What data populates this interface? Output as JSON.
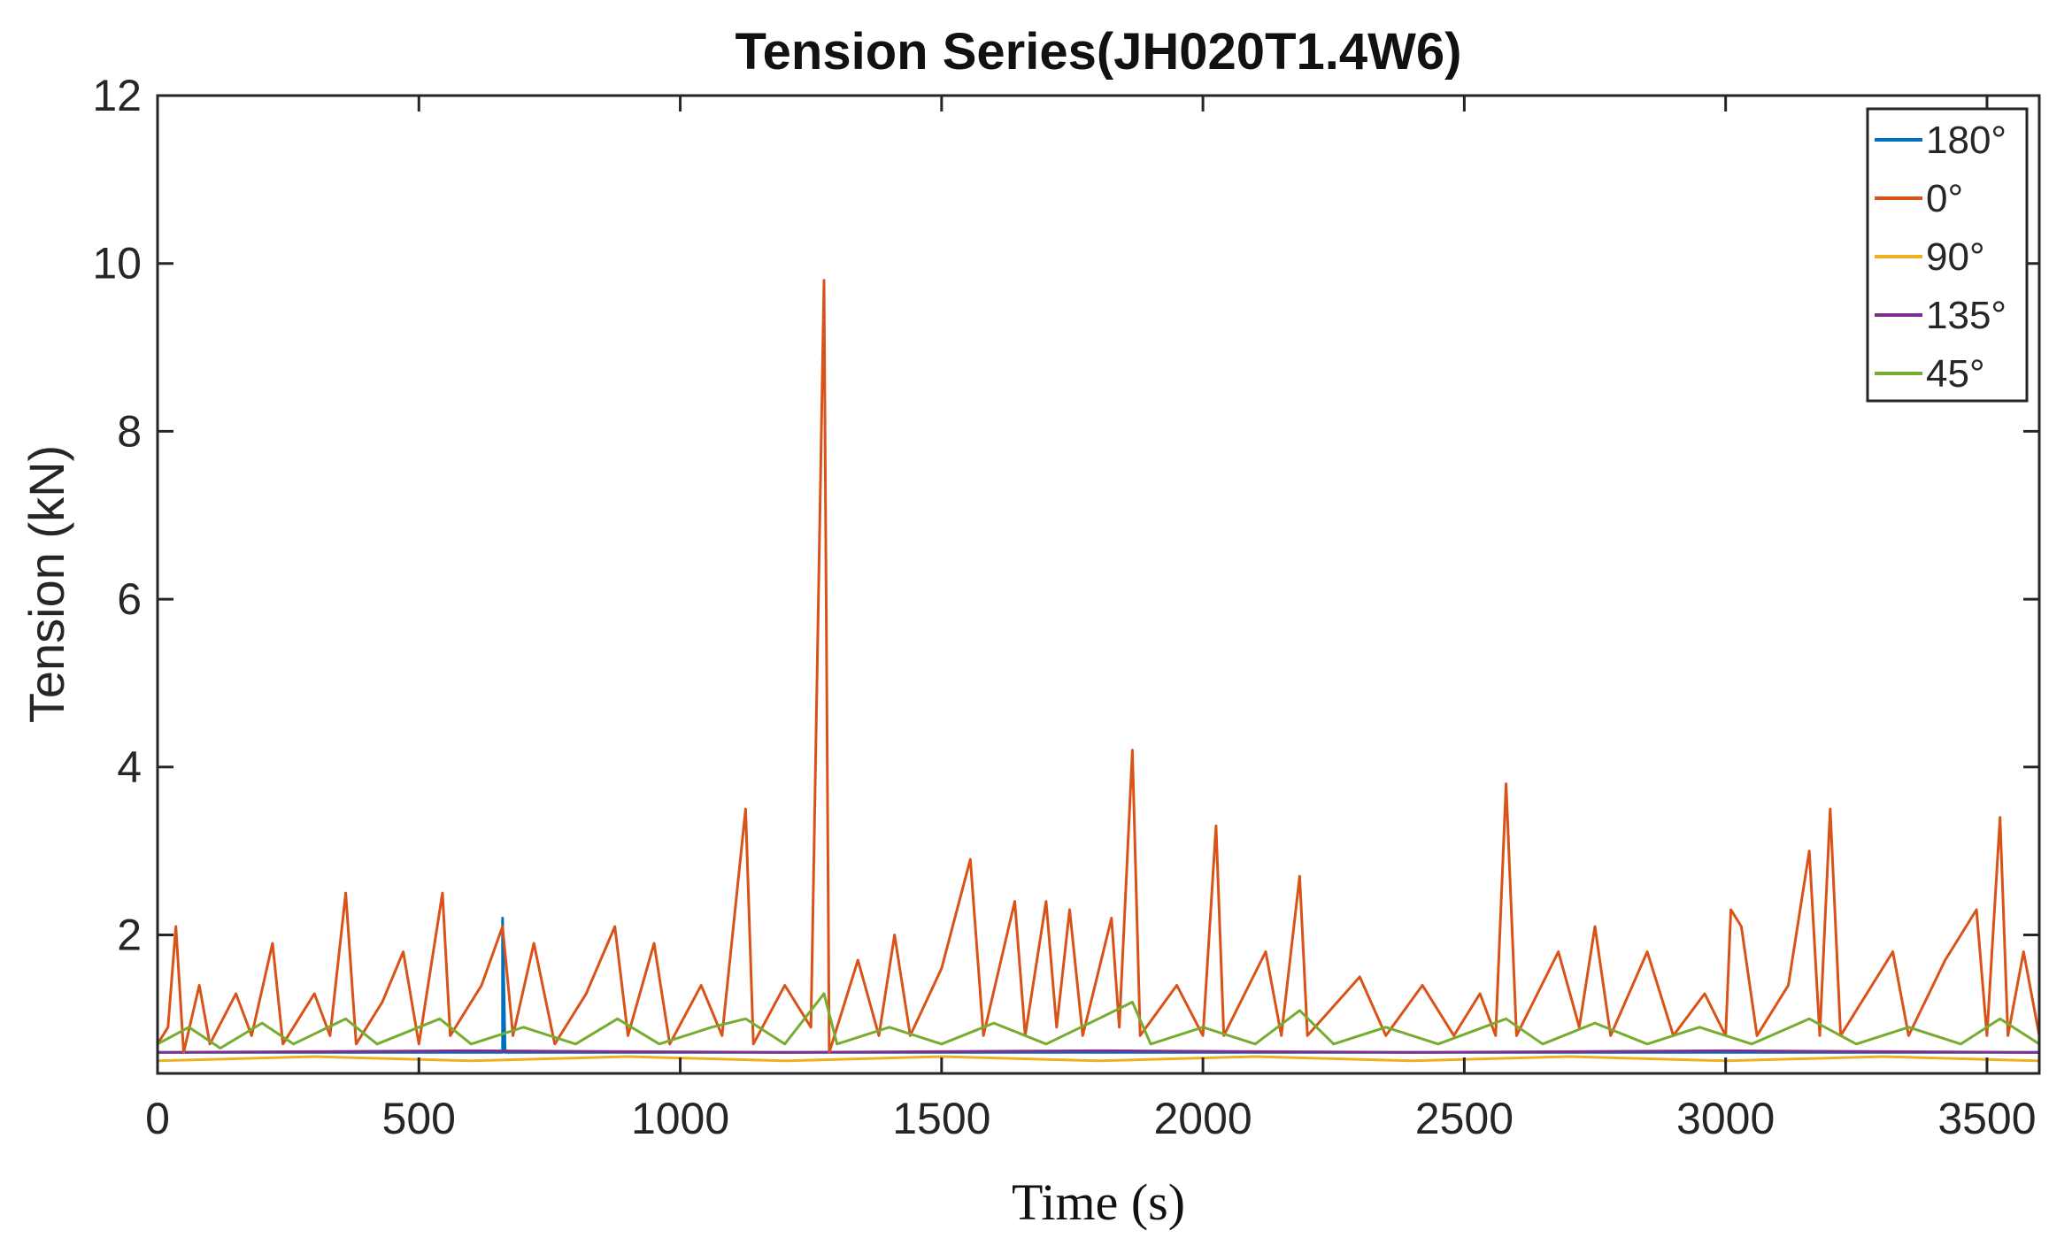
{
  "chart_data": {
    "type": "line",
    "title": "Tension Series(JH020T1.4W6)",
    "xlabel": "Time (s)",
    "ylabel": "Tension (kN)",
    "xlim": [
      0,
      3600
    ],
    "ylim": [
      0,
      12
    ],
    "xticks": [
      0,
      500,
      1000,
      1500,
      2000,
      2500,
      3000,
      3500
    ],
    "yticks": [
      2,
      4,
      6,
      8,
      10,
      12
    ],
    "grid": false,
    "legend_position": "top-right",
    "series": [
      {
        "name": "180°",
        "color": "#0072BD",
        "points": [
          [
            0,
            0.6
          ],
          [
            660,
            0.6
          ],
          [
            660,
            2.2
          ],
          [
            665,
            0.6
          ],
          [
            3600,
            0.6
          ]
        ]
      },
      {
        "name": "0°",
        "color": "#D95319",
        "points": [
          [
            0,
            0.7
          ],
          [
            20,
            0.9
          ],
          [
            35,
            2.1
          ],
          [
            50,
            0.6
          ],
          [
            80,
            1.4
          ],
          [
            100,
            0.7
          ],
          [
            150,
            1.3
          ],
          [
            180,
            0.8
          ],
          [
            220,
            1.9
          ],
          [
            240,
            0.7
          ],
          [
            300,
            1.3
          ],
          [
            330,
            0.8
          ],
          [
            360,
            2.5
          ],
          [
            380,
            0.7
          ],
          [
            430,
            1.2
          ],
          [
            470,
            1.8
          ],
          [
            500,
            0.7
          ],
          [
            545,
            2.5
          ],
          [
            560,
            0.8
          ],
          [
            620,
            1.4
          ],
          [
            660,
            2.1
          ],
          [
            680,
            0.8
          ],
          [
            720,
            1.9
          ],
          [
            760,
            0.7
          ],
          [
            820,
            1.3
          ],
          [
            875,
            2.1
          ],
          [
            900,
            0.8
          ],
          [
            950,
            1.9
          ],
          [
            980,
            0.7
          ],
          [
            1040,
            1.4
          ],
          [
            1080,
            0.8
          ],
          [
            1125,
            3.5
          ],
          [
            1140,
            0.7
          ],
          [
            1200,
            1.4
          ],
          [
            1250,
            0.9
          ],
          [
            1275,
            9.8
          ],
          [
            1285,
            0.6
          ],
          [
            1340,
            1.7
          ],
          [
            1380,
            0.8
          ],
          [
            1410,
            2.0
          ],
          [
            1440,
            0.8
          ],
          [
            1500,
            1.6
          ],
          [
            1555,
            2.9
          ],
          [
            1580,
            0.8
          ],
          [
            1640,
            2.4
          ],
          [
            1660,
            0.8
          ],
          [
            1700,
            2.4
          ],
          [
            1720,
            0.9
          ],
          [
            1745,
            2.3
          ],
          [
            1770,
            0.8
          ],
          [
            1825,
            2.2
          ],
          [
            1840,
            0.9
          ],
          [
            1865,
            4.2
          ],
          [
            1880,
            0.8
          ],
          [
            1950,
            1.4
          ],
          [
            2000,
            0.8
          ],
          [
            2025,
            3.3
          ],
          [
            2040,
            0.8
          ],
          [
            2120,
            1.8
          ],
          [
            2150,
            0.8
          ],
          [
            2185,
            2.7
          ],
          [
            2200,
            0.8
          ],
          [
            2300,
            1.5
          ],
          [
            2350,
            0.8
          ],
          [
            2420,
            1.4
          ],
          [
            2480,
            0.8
          ],
          [
            2530,
            1.3
          ],
          [
            2560,
            0.8
          ],
          [
            2580,
            3.8
          ],
          [
            2600,
            0.8
          ],
          [
            2680,
            1.8
          ],
          [
            2720,
            0.9
          ],
          [
            2750,
            2.1
          ],
          [
            2780,
            0.8
          ],
          [
            2850,
            1.8
          ],
          [
            2900,
            0.8
          ],
          [
            2960,
            1.3
          ],
          [
            3000,
            0.8
          ],
          [
            3010,
            2.3
          ],
          [
            3030,
            2.1
          ],
          [
            3060,
            0.8
          ],
          [
            3120,
            1.4
          ],
          [
            3160,
            3.0
          ],
          [
            3180,
            0.8
          ],
          [
            3200,
            3.5
          ],
          [
            3220,
            0.8
          ],
          [
            3320,
            1.8
          ],
          [
            3350,
            0.8
          ],
          [
            3420,
            1.7
          ],
          [
            3480,
            2.3
          ],
          [
            3500,
            0.8
          ],
          [
            3525,
            3.4
          ],
          [
            3540,
            0.8
          ],
          [
            3570,
            1.8
          ],
          [
            3600,
            0.8
          ]
        ]
      },
      {
        "name": "90°",
        "color": "#EDB120",
        "points": [
          [
            0,
            0.5
          ],
          [
            300,
            0.55
          ],
          [
            600,
            0.5
          ],
          [
            900,
            0.55
          ],
          [
            1200,
            0.5
          ],
          [
            1500,
            0.55
          ],
          [
            1800,
            0.5
          ],
          [
            2100,
            0.55
          ],
          [
            2400,
            0.5
          ],
          [
            2700,
            0.55
          ],
          [
            3000,
            0.5
          ],
          [
            3300,
            0.55
          ],
          [
            3600,
            0.5
          ]
        ]
      },
      {
        "name": "135°",
        "color": "#7E2F8E",
        "points": [
          [
            0,
            0.6
          ],
          [
            600,
            0.62
          ],
          [
            1200,
            0.6
          ],
          [
            1800,
            0.62
          ],
          [
            2400,
            0.6
          ],
          [
            3000,
            0.62
          ],
          [
            3600,
            0.6
          ]
        ]
      },
      {
        "name": "45°",
        "color": "#77AC30",
        "points": [
          [
            0,
            0.7
          ],
          [
            60,
            0.9
          ],
          [
            120,
            0.65
          ],
          [
            200,
            0.95
          ],
          [
            260,
            0.7
          ],
          [
            360,
            1.0
          ],
          [
            420,
            0.7
          ],
          [
            540,
            1.0
          ],
          [
            600,
            0.7
          ],
          [
            700,
            0.9
          ],
          [
            800,
            0.7
          ],
          [
            880,
            1.0
          ],
          [
            960,
            0.7
          ],
          [
            1060,
            0.9
          ],
          [
            1125,
            1.0
          ],
          [
            1200,
            0.7
          ],
          [
            1275,
            1.3
          ],
          [
            1300,
            0.7
          ],
          [
            1400,
            0.9
          ],
          [
            1500,
            0.7
          ],
          [
            1600,
            0.95
          ],
          [
            1700,
            0.7
          ],
          [
            1800,
            1.0
          ],
          [
            1865,
            1.2
          ],
          [
            1900,
            0.7
          ],
          [
            2000,
            0.9
          ],
          [
            2100,
            0.7
          ],
          [
            2185,
            1.1
          ],
          [
            2250,
            0.7
          ],
          [
            2350,
            0.9
          ],
          [
            2450,
            0.7
          ],
          [
            2580,
            1.0
          ],
          [
            2650,
            0.7
          ],
          [
            2750,
            0.95
          ],
          [
            2850,
            0.7
          ],
          [
            2950,
            0.9
          ],
          [
            3050,
            0.7
          ],
          [
            3160,
            1.0
          ],
          [
            3250,
            0.7
          ],
          [
            3350,
            0.9
          ],
          [
            3450,
            0.7
          ],
          [
            3525,
            1.0
          ],
          [
            3600,
            0.7
          ]
        ]
      }
    ]
  }
}
